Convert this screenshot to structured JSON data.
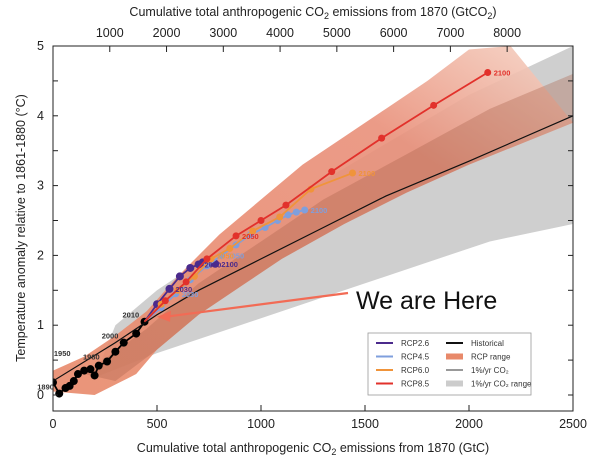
{
  "chart_data": {
    "type": "line",
    "title": "",
    "xlabel": "Cumulative total anthropogenic CO2 emissions from 1870 (GtC)",
    "x2label": "Cumulative total anthropogenic CO2 emissions from 1870 (GtCO2)",
    "ylabel": "Temperature anomaly relative to 1861-1880 (°C)",
    "xlim": [
      0,
      2500
    ],
    "ylim": [
      -0.25,
      5
    ],
    "x_ticks": [
      0,
      500,
      1000,
      1500,
      2000,
      2500
    ],
    "x2_ticks": [
      1000,
      2000,
      3000,
      4000,
      5000,
      6000,
      7000,
      8000
    ],
    "y_ticks": [
      0,
      1,
      2,
      3,
      4,
      5
    ],
    "grid": false,
    "legend_position": "lower right",
    "series": [
      {
        "name": "Historical",
        "color": "#000000",
        "x": [
          0,
          30,
          60,
          80,
          100,
          120,
          150,
          180,
          200,
          220,
          260,
          300,
          340,
          400,
          440
        ],
        "y": [
          0.18,
          0.02,
          0.1,
          0.13,
          0.2,
          0.3,
          0.35,
          0.37,
          0.28,
          0.42,
          0.48,
          0.62,
          0.75,
          0.88,
          1.05
        ],
        "labels": {
          "1890": [
            30,
            0.02
          ],
          "1950": [
            110,
            0.5
          ],
          "1980": [
            250,
            0.45
          ],
          "2000": [
            340,
            0.75
          ],
          "2010": [
            440,
            1.05
          ]
        }
      },
      {
        "name": "RCP2.6",
        "color": "#4b2a8c",
        "x": [
          440,
          500,
          560,
          610,
          660,
          700,
          720,
          740,
          760,
          780
        ],
        "y": [
          1.05,
          1.3,
          1.52,
          1.7,
          1.82,
          1.87,
          1.9,
          1.88,
          1.9,
          1.88
        ],
        "labels": {
          "2030": [
            560,
            1.52
          ],
          "2050": [
            700,
            1.87
          ],
          "2100": [
            780,
            1.88
          ]
        }
      },
      {
        "name": "RCP4.5",
        "color": "#7f9fdd",
        "x": [
          440,
          520,
          590,
          660,
          740,
          810,
          880,
          950,
          1020,
          1080,
          1130,
          1170,
          1210
        ],
        "y": [
          1.05,
          1.25,
          1.45,
          1.65,
          1.85,
          2.0,
          2.15,
          2.3,
          2.4,
          2.5,
          2.58,
          2.62,
          2.65
        ],
        "labels": {
          "2030": [
            590,
            1.45
          ],
          "2050": [
            810,
            2.0
          ],
          "2100": [
            1210,
            2.65
          ]
        }
      },
      {
        "name": "RCP6.0",
        "color": "#f0943a",
        "x": [
          440,
          520,
          600,
          680,
          760,
          850,
          960,
          1090,
          1240,
          1440
        ],
        "y": [
          1.05,
          1.3,
          1.5,
          1.7,
          1.95,
          2.1,
          2.35,
          2.55,
          2.95,
          3.18
        ],
        "labels": {
          "2050": [
            760,
            2.0
          ],
          "2100": [
            1440,
            3.18
          ]
        }
      },
      {
        "name": "RCP8.5",
        "color": "#e2312b",
        "x": [
          440,
          540,
          640,
          740,
          880,
          1000,
          1120,
          1340,
          1580,
          1830,
          2090
        ],
        "y": [
          1.05,
          1.35,
          1.62,
          1.95,
          2.28,
          2.5,
          2.72,
          3.2,
          3.68,
          4.15,
          4.62
        ],
        "labels": {
          "2050": [
            880,
            2.28
          ],
          "2100": [
            2090,
            4.62
          ]
        }
      },
      {
        "name": "1%/yr CO2",
        "color": "#111111",
        "x": [
          0,
          300,
          500,
          700,
          1000,
          1300,
          1600,
          2000,
          2500
        ],
        "y": [
          0.2,
          0.75,
          1.15,
          1.5,
          1.95,
          2.4,
          2.85,
          3.35,
          4.0
        ]
      }
    ],
    "bands": [
      {
        "name": "RCP range",
        "color": "#e8896a",
        "upper": [
          [
            0,
            0.35
          ],
          [
            150,
            0.55
          ],
          [
            300,
            0.85
          ],
          [
            450,
            1.2
          ],
          [
            600,
            1.7
          ],
          [
            800,
            2.3
          ],
          [
            1000,
            2.8
          ],
          [
            1200,
            3.3
          ],
          [
            1400,
            3.7
          ],
          [
            1600,
            4.1
          ],
          [
            1800,
            4.5
          ],
          [
            2000,
            4.95
          ],
          [
            2200,
            5.0
          ]
        ],
        "lower": [
          [
            0,
            0.05
          ],
          [
            200,
            0.0
          ],
          [
            400,
            0.3
          ],
          [
            500,
            0.65
          ],
          [
            700,
            1.15
          ],
          [
            900,
            1.55
          ],
          [
            1100,
            1.95
          ],
          [
            1400,
            2.45
          ],
          [
            1700,
            2.9
          ],
          [
            2000,
            3.3
          ],
          [
            2500,
            3.9
          ]
        ]
      },
      {
        "name": "1%/yr CO2 range",
        "color": "#cfcfcf",
        "upper": [
          [
            300,
            1.0
          ],
          [
            500,
            1.5
          ],
          [
            800,
            2.1
          ],
          [
            1200,
            2.9
          ],
          [
            1600,
            3.6
          ],
          [
            2000,
            4.3
          ],
          [
            2500,
            5.0
          ]
        ],
        "lower": [
          [
            200,
            0.25
          ],
          [
            500,
            0.6
          ],
          [
            900,
            1.0
          ],
          [
            1300,
            1.4
          ],
          [
            1700,
            1.8
          ],
          [
            2100,
            2.2
          ],
          [
            2500,
            2.45
          ]
        ]
      }
    ],
    "annotations": [
      {
        "text": "We are Here",
        "arrow_to": [
          500,
          1.12
        ],
        "arrow_color": "#f26b55"
      }
    ]
  },
  "axes": {
    "x_title": "Cumulative total anthropogenic CO",
    "x_title_sub": "2",
    "x_title_end": " emissions from 1870 (GtC)",
    "x2_title": "Cumulative total anthropogenic CO",
    "x2_title_sub": "2",
    "x2_title_mid": " emissions from 1870 (GtCO",
    "x2_title_sub2": "2",
    "x2_title_end": ")",
    "y_title": "Temperature anomaly relative to 1861-1880 (°C)"
  },
  "legend": {
    "items": [
      {
        "label": "RCP2.6",
        "color": "#4b2a8c",
        "kind": "line"
      },
      {
        "label": "RCP4.5",
        "color": "#7f9fdd",
        "kind": "line"
      },
      {
        "label": "RCP6.0",
        "color": "#f0943a",
        "kind": "line"
      },
      {
        "label": "RCP8.5",
        "color": "#e2312b",
        "kind": "line"
      },
      {
        "label": "Historical",
        "color": "#111111",
        "kind": "line"
      },
      {
        "label": "RCP range",
        "color": "#e8896a",
        "kind": "patch"
      },
      {
        "label": "1%/yr CO₂",
        "color": "#333333",
        "kind": "thin"
      },
      {
        "label": "1%/yr CO₂ range",
        "color": "#cccccc",
        "kind": "patch"
      }
    ]
  },
  "annotation": {
    "text": "We are Here"
  }
}
